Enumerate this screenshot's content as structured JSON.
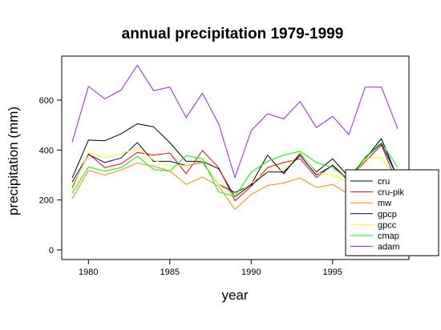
{
  "chart_data": {
    "type": "line",
    "title": "annual precipitation 1979-1999",
    "xlabel": "year",
    "ylabel": "precipitation (mm)",
    "x": [
      1979,
      1980,
      1981,
      1982,
      1983,
      1984,
      1985,
      1986,
      1987,
      1988,
      1989,
      1990,
      1991,
      1992,
      1993,
      1994,
      1995,
      1996,
      1997,
      1998,
      1999
    ],
    "xlim": [
      1979,
      1999
    ],
    "ylim": [
      0,
      740
    ],
    "xticks": [
      1980,
      1985,
      1990,
      1995
    ],
    "yticks": [
      0,
      200,
      400,
      600
    ],
    "grid": false,
    "legend_position": "bottom-right",
    "series": [
      {
        "name": "cru",
        "color": "#000000",
        "values": [
          288,
          440,
          437,
          465,
          505,
          493,
          430,
          355,
          355,
          325,
          212,
          262,
          380,
          305,
          386,
          312,
          365,
          292,
          365,
          446,
          287
        ]
      },
      {
        "name": "cru-pik",
        "color": "#ff0000",
        "values": [
          250,
          385,
          330,
          345,
          390,
          380,
          388,
          305,
          398,
          330,
          197,
          255,
          330,
          350,
          365,
          290,
          340,
          280,
          355,
          420,
          260
        ]
      },
      {
        "name": "mw",
        "color": "#ff8c00",
        "values": [
          205,
          318,
          300,
          320,
          348,
          335,
          316,
          262,
          292,
          255,
          162,
          222,
          258,
          268,
          288,
          250,
          262,
          222,
          300,
          298,
          230
        ]
      },
      {
        "name": "gpcp",
        "color": "#000080",
        "values": [
          272,
          382,
          350,
          368,
          430,
          355,
          355,
          338,
          352,
          262,
          230,
          260,
          312,
          312,
          378,
          300,
          338,
          275,
          370,
          426,
          290
        ]
      },
      {
        "name": "gpcc",
        "color": "#ffff00",
        "values": [
          242,
          390,
          370,
          385,
          408,
          360,
          338,
          338,
          355,
          262,
          215,
          268,
          315,
          320,
          390,
          308,
          300,
          268,
          365,
          370,
          268
        ]
      },
      {
        "name": "cmap",
        "color": "#00ff00",
        "values": [
          228,
          332,
          315,
          330,
          375,
          322,
          316,
          378,
          365,
          232,
          215,
          312,
          355,
          380,
          395,
          350,
          330,
          282,
          372,
          430,
          330
        ]
      },
      {
        "name": "adam",
        "color": "#a020f0",
        "values": [
          432,
          655,
          605,
          640,
          740,
          638,
          652,
          530,
          628,
          505,
          290,
          478,
          545,
          525,
          595,
          490,
          535,
          462,
          652,
          652,
          485
        ]
      }
    ]
  }
}
